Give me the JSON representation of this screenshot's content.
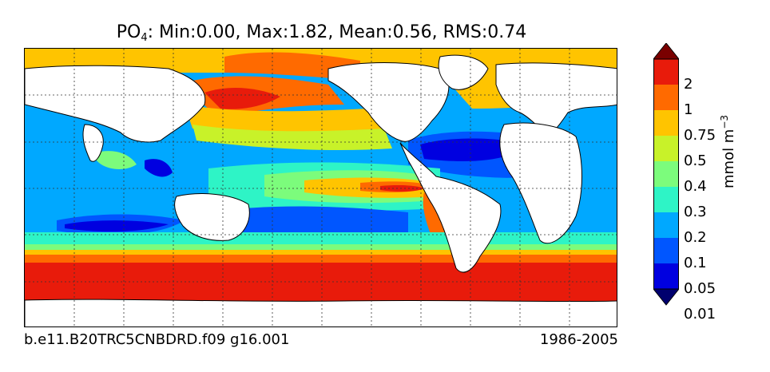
{
  "title": {
    "prefix": "PO",
    "sub": "4",
    "stats": ": Min:0.00, Max:1.82, Mean:0.56, RMS:0.74"
  },
  "footer": {
    "case_name": "b.e11.B20TRC5CNBDRD.f09 g16.001",
    "period": "1986-2005"
  },
  "colorbar": {
    "unit_prefix": "mmol m",
    "unit_exp": "−3",
    "levels": [
      "2",
      "1",
      "0.75",
      "0.5",
      "0.4",
      "0.3",
      "0.2",
      "0.1",
      "0.05",
      "0.01"
    ],
    "colors": [
      "#7a0000",
      "#e81b0b",
      "#ff6a00",
      "#ffc400",
      "#c8f229",
      "#7cfc7c",
      "#2ef4c6",
      "#00a8ff",
      "#0056ff",
      "#0000e0",
      "#00006e"
    ]
  },
  "map": {
    "projection": "equirectangular",
    "gridlines": "dashed",
    "land_color": "#ffffff"
  }
}
